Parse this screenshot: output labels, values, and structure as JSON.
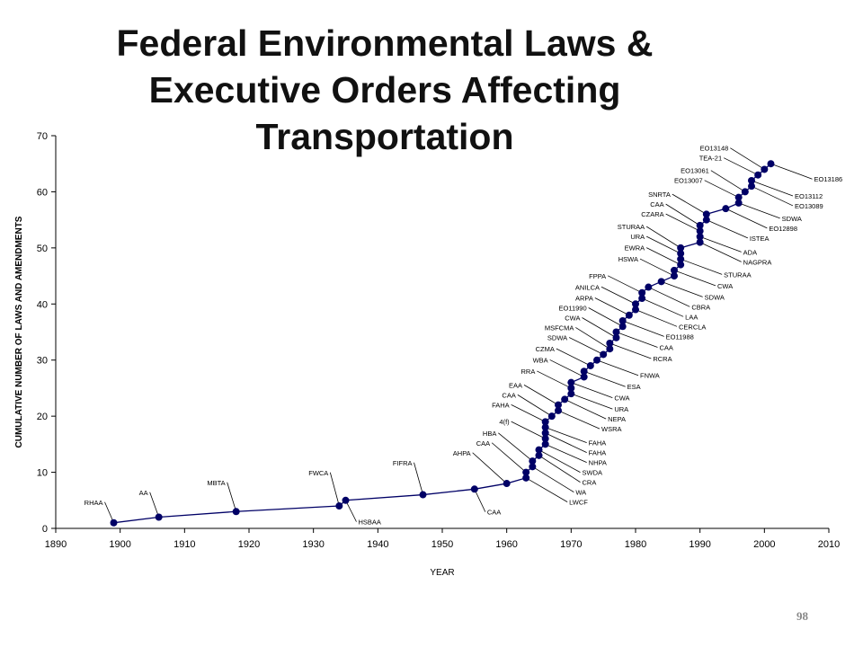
{
  "title": [
    "Federal Environmental Laws &",
    "Executive Orders Affecting",
    "Transportation"
  ],
  "page_number": "98",
  "chart_data": {
    "type": "line",
    "title": "Federal Environmental Laws & Executive Orders Affecting Transportation",
    "xlabel": "YEAR",
    "ylabel": "CUMULATIVE NUMBER OF LAWS AND AMENDMENTS",
    "xlim": [
      1890,
      2010
    ],
    "ylim": [
      0,
      70
    ],
    "xticks": [
      1890,
      1900,
      1910,
      1920,
      1930,
      1940,
      1950,
      1960,
      1970,
      1980,
      1990,
      2000,
      2010
    ],
    "yticks": [
      0,
      10,
      20,
      30,
      40,
      50,
      60,
      70
    ],
    "grid": false,
    "color": "#000066",
    "points": [
      {
        "year": 1899,
        "n": 1,
        "label": "RHAA",
        "side": "left"
      },
      {
        "year": 1906,
        "n": 2,
        "label": "AA",
        "side": "left"
      },
      {
        "year": 1918,
        "n": 3,
        "label": "MBTA",
        "side": "left"
      },
      {
        "year": 1934,
        "n": 4,
        "label": "FWCA",
        "side": "left"
      },
      {
        "year": 1935,
        "n": 5,
        "label": "HSBAA",
        "side": "right"
      },
      {
        "year": 1947,
        "n": 6,
        "label": "FIFRA",
        "side": "left"
      },
      {
        "year": 1955,
        "n": 7,
        "label": "CAA",
        "side": "right"
      },
      {
        "year": 1960,
        "n": 8,
        "label": "AHPA",
        "side": "left"
      },
      {
        "year": 1963,
        "n": 9,
        "label": "LWCF",
        "side": "right"
      },
      {
        "year": 1963,
        "n": 10,
        "label": "CAA",
        "side": "left"
      },
      {
        "year": 1964,
        "n": 11,
        "label": "WA",
        "side": "right"
      },
      {
        "year": 1964,
        "n": 12,
        "label": "HBA",
        "side": "left"
      },
      {
        "year": 1965,
        "n": 13,
        "label": "CRA",
        "side": "right"
      },
      {
        "year": 1965,
        "n": 14,
        "label": "SWDA",
        "side": "right"
      },
      {
        "year": 1966,
        "n": 15,
        "label": "NHPA",
        "side": "right"
      },
      {
        "year": 1966,
        "n": 16,
        "label": "4(f)",
        "side": "left"
      },
      {
        "year": 1966,
        "n": 17,
        "label": "FAHA",
        "side": "right"
      },
      {
        "year": 1966,
        "n": 18,
        "label": "FAHA",
        "side": "right"
      },
      {
        "year": 1966,
        "n": 19,
        "label": "FAHA",
        "side": "left"
      },
      {
        "year": 1967,
        "n": 20,
        "label": "CAA",
        "side": "left"
      },
      {
        "year": 1968,
        "n": 21,
        "label": "WSRA",
        "side": "right"
      },
      {
        "year": 1968,
        "n": 22,
        "label": "EAA",
        "side": "left"
      },
      {
        "year": 1969,
        "n": 23,
        "label": "NEPA",
        "side": "right"
      },
      {
        "year": 1970,
        "n": 24,
        "label": "URA",
        "side": "right"
      },
      {
        "year": 1970,
        "n": 25,
        "label": "RRA",
        "side": "left"
      },
      {
        "year": 1970,
        "n": 26,
        "label": "CWA",
        "side": "right"
      },
      {
        "year": 1972,
        "n": 27,
        "label": "WBA",
        "side": "left"
      },
      {
        "year": 1972,
        "n": 28,
        "label": "ESA",
        "side": "right"
      },
      {
        "year": 1973,
        "n": 29,
        "label": "CZMA",
        "side": "left"
      },
      {
        "year": 1974,
        "n": 30,
        "label": "FNWA",
        "side": "right"
      },
      {
        "year": 1975,
        "n": 31,
        "label": "SDWA",
        "side": "left"
      },
      {
        "year": 1976,
        "n": 32,
        "label": "MSFCMA",
        "side": "left"
      },
      {
        "year": 1976,
        "n": 33,
        "label": "RCRA",
        "side": "right"
      },
      {
        "year": 1977,
        "n": 34,
        "label": "CWA",
        "side": "left"
      },
      {
        "year": 1977,
        "n": 35,
        "label": "CAA",
        "side": "right"
      },
      {
        "year": 1978,
        "n": 36,
        "label": "EO11990",
        "side": "left"
      },
      {
        "year": 1978,
        "n": 37,
        "label": "EO11988",
        "side": "right"
      },
      {
        "year": 1979,
        "n": 38,
        "label": "ARPA",
        "side": "left"
      },
      {
        "year": 1980,
        "n": 39,
        "label": "CERCLA",
        "side": "right"
      },
      {
        "year": 1980,
        "n": 40,
        "label": "ANILCA",
        "side": "left"
      },
      {
        "year": 1981,
        "n": 41,
        "label": "LAA",
        "side": "right"
      },
      {
        "year": 1981,
        "n": 42,
        "label": "FPPA",
        "side": "left"
      },
      {
        "year": 1982,
        "n": 43,
        "label": "CBRA",
        "side": "right"
      },
      {
        "year": 1984,
        "n": 44,
        "label": "SDWA",
        "side": "right"
      },
      {
        "year": 1986,
        "n": 45,
        "label": "HSWA",
        "side": "left"
      },
      {
        "year": 1986,
        "n": 46,
        "label": "CWA",
        "side": "right"
      },
      {
        "year": 1987,
        "n": 47,
        "label": "EWRA",
        "side": "left"
      },
      {
        "year": 1987,
        "n": 48,
        "label": "STURAA",
        "side": "right"
      },
      {
        "year": 1987,
        "n": 49,
        "label": "URA",
        "side": "left"
      },
      {
        "year": 1987,
        "n": 50,
        "label": "STURAA",
        "side": "left"
      },
      {
        "year": 1990,
        "n": 51,
        "label": "NAGPRA",
        "side": "right"
      },
      {
        "year": 1990,
        "n": 52,
        "label": "ADA",
        "side": "right"
      },
      {
        "year": 1990,
        "n": 53,
        "label": "CZARA",
        "side": "left"
      },
      {
        "year": 1990,
        "n": 54,
        "label": "CAA",
        "side": "left"
      },
      {
        "year": 1991,
        "n": 55,
        "label": "ISTEA",
        "side": "right"
      },
      {
        "year": 1991,
        "n": 56,
        "label": "SNRTA",
        "side": "left"
      },
      {
        "year": 1994,
        "n": 57,
        "label": "EO12898",
        "side": "right"
      },
      {
        "year": 1996,
        "n": 58,
        "label": "SDWA",
        "side": "right"
      },
      {
        "year": 1996,
        "n": 59,
        "label": "EO13007",
        "side": "left"
      },
      {
        "year": 1997,
        "n": 60,
        "label": "EO13061",
        "side": "left"
      },
      {
        "year": 1998,
        "n": 61,
        "label": "EO13089",
        "side": "right"
      },
      {
        "year": 1998,
        "n": 62,
        "label": "EO13112",
        "side": "right"
      },
      {
        "year": 1999,
        "n": 63,
        "label": "TEA-21",
        "side": "left"
      },
      {
        "year": 2000,
        "n": 64,
        "label": "EO13148",
        "side": "left"
      },
      {
        "year": 2001,
        "n": 65,
        "label": "EO13186",
        "side": "right"
      }
    ]
  }
}
